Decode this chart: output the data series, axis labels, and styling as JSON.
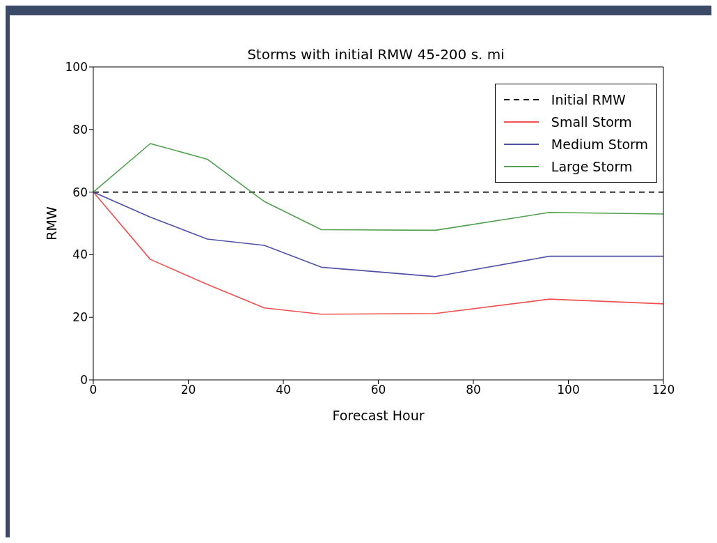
{
  "chart_data": {
    "type": "line",
    "title": "Storms with initial RMW 45-200 s. mi",
    "xlabel": "Forecast Hour",
    "ylabel": "RMW",
    "xlim": [
      0,
      120
    ],
    "xticks": [
      0,
      20,
      40,
      60,
      80,
      100,
      120
    ],
    "ylim": [
      0,
      100
    ],
    "yticks": [
      0,
      20,
      40,
      60,
      80,
      100
    ],
    "grid": false,
    "legend": "top right",
    "marker": "none",
    "series": [
      {
        "name": "Initial RMW",
        "color": "#000000",
        "line_style": "dashed",
        "x": [
          0,
          120
        ],
        "values": [
          60,
          60
        ]
      },
      {
        "name": "Small Storm",
        "color": "#f05050",
        "line_style": "solid",
        "x": [
          0,
          12,
          24,
          36,
          48,
          72,
          96,
          120
        ],
        "values": [
          60,
          38.5,
          30.5,
          23,
          21,
          21.2,
          25.8,
          24.3
        ]
      },
      {
        "name": "Medium Storm",
        "color": "#5050a8",
        "line_style": "solid",
        "x": [
          0,
          12,
          24,
          36,
          48,
          72,
          96,
          120
        ],
        "values": [
          60,
          52,
          45,
          43,
          36,
          33,
          39.5,
          39.5
        ]
      },
      {
        "name": "Large Storm",
        "color": "#50a050",
        "line_style": "solid",
        "x": [
          0,
          12,
          24,
          36,
          48,
          72,
          96,
          120
        ],
        "values": [
          60,
          75.5,
          70.5,
          57,
          48,
          47.8,
          53.5,
          53
        ]
      }
    ]
  }
}
